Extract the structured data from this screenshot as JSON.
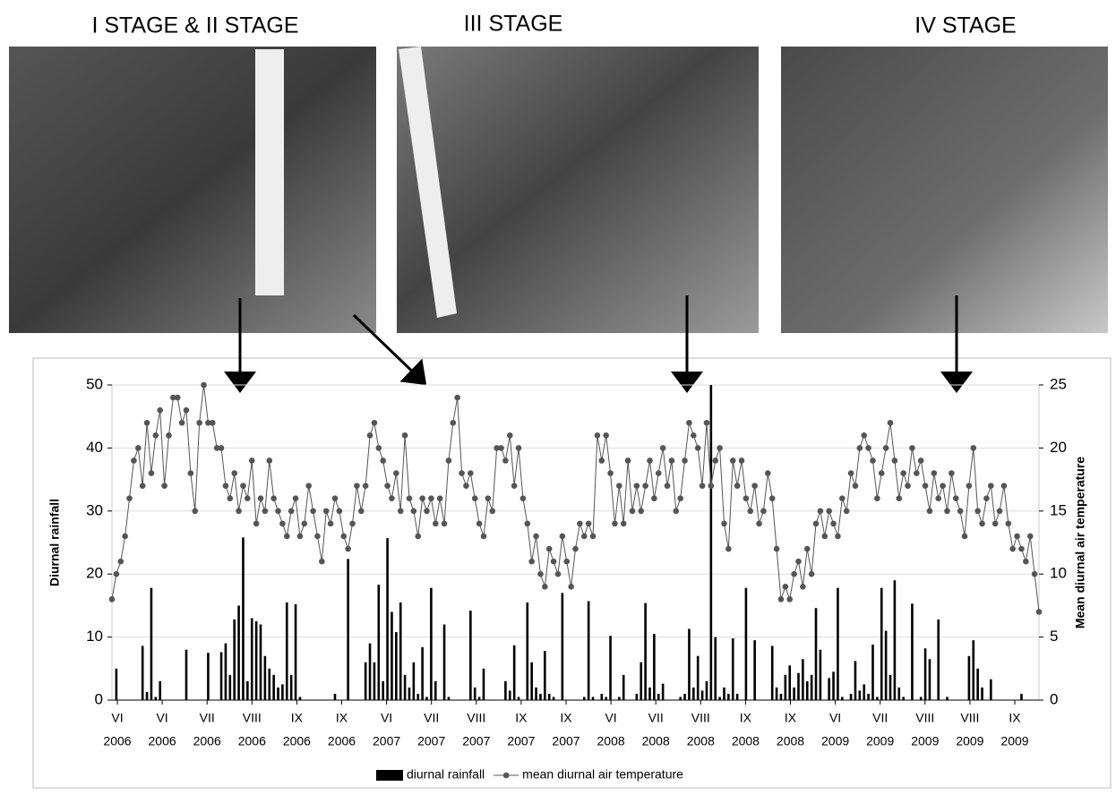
{
  "photos": [
    {
      "title": "I STAGE & II STAGE"
    },
    {
      "title": "III STAGE"
    },
    {
      "title": "IV STAGE"
    }
  ],
  "chart_data": {
    "type": "bar-line",
    "ylabel": "Diurnal rainfall",
    "y2label": "Mean diurnal air temperature",
    "ylim": [
      0,
      50
    ],
    "yticks": [
      0,
      10,
      20,
      30,
      40,
      50
    ],
    "y2lim": [
      0,
      25
    ],
    "y2ticks": [
      0,
      5,
      10,
      15,
      20,
      25
    ],
    "grid": true,
    "legend": "bottom",
    "x_labels": [
      {
        "month": "VI",
        "year": "2006"
      },
      {
        "month": "VI",
        "year": "2006"
      },
      {
        "month": "VII",
        "year": "2006"
      },
      {
        "month": "VIII",
        "year": "2006"
      },
      {
        "month": "IX",
        "year": "2006"
      },
      {
        "month": "IX",
        "year": "2006"
      },
      {
        "month": "VI",
        "year": "2007"
      },
      {
        "month": "VII",
        "year": "2007"
      },
      {
        "month": "VIII",
        "year": "2007"
      },
      {
        "month": "IX",
        "year": "2007"
      },
      {
        "month": "IX",
        "year": "2007"
      },
      {
        "month": "VI",
        "year": "2008"
      },
      {
        "month": "VII",
        "year": "2008"
      },
      {
        "month": "VIII",
        "year": "2008"
      },
      {
        "month": "IX",
        "year": "2008"
      },
      {
        "month": "IX",
        "year": "2008"
      },
      {
        "month": "VI",
        "year": "2009"
      },
      {
        "month": "VII",
        "year": "2009"
      },
      {
        "month": "VIII",
        "year": "2009"
      },
      {
        "month": "VIII",
        "year": "2009"
      },
      {
        "month": "IX",
        "year": "2009"
      }
    ],
    "series": [
      {
        "name": "diurnal rainfall",
        "type": "bar",
        "color": "#000000",
        "values": [
          0,
          5,
          0,
          0,
          0,
          0,
          0,
          8.6,
          1.3,
          17.8,
          0.5,
          3,
          0,
          0,
          0,
          0,
          0,
          8,
          0,
          0,
          0,
          0,
          7.5,
          0,
          0,
          7.6,
          9,
          4,
          12.8,
          15,
          25.8,
          3,
          13,
          12.5,
          12,
          7,
          5,
          4,
          2,
          2.5,
          15.5,
          4,
          15.2,
          0.5,
          0,
          0,
          0,
          0,
          0,
          0,
          0,
          1,
          0,
          0,
          22.4,
          0,
          0,
          0,
          6,
          9,
          6,
          18.3,
          3,
          25.7,
          14,
          10.8,
          15.5,
          4,
          2,
          6,
          1,
          8.4,
          0.5,
          17.8,
          3,
          0,
          12,
          0.5,
          0,
          0,
          0,
          0,
          14.2,
          2,
          0.5,
          5,
          0,
          0,
          0,
          0,
          3,
          1.5,
          8.7,
          0.5,
          0,
          15.5,
          6,
          2,
          1,
          7.8,
          1,
          0.5,
          0,
          17,
          0,
          0,
          0,
          0,
          0.5,
          15.7,
          0.5,
          0,
          1,
          0.5,
          10.2,
          0,
          0.5,
          4,
          0,
          0,
          1,
          6,
          15.4,
          2,
          10.5,
          1,
          2.6,
          0,
          0,
          0,
          0.5,
          1,
          11.3,
          2,
          7,
          1.5,
          3,
          50,
          10,
          0.5,
          2,
          1,
          9.8,
          1,
          0,
          17.8,
          0,
          9.5,
          0,
          0,
          0,
          8.6,
          2,
          1,
          4,
          5.5,
          2,
          4.3,
          6.5,
          3,
          4,
          14.6,
          8,
          0,
          3.5,
          4.5,
          17.8,
          0.5,
          0,
          1,
          6.2,
          1.5,
          2.5,
          1,
          8.8,
          0.5,
          17.8,
          11,
          4,
          19,
          2,
          0.5,
          0,
          15.3,
          0,
          0.5,
          8.2,
          6.5,
          0,
          12.8,
          0,
          0.5,
          0,
          0,
          0,
          0,
          7,
          9.5,
          5,
          2,
          0,
          3.3,
          0,
          0,
          0,
          0,
          0,
          0,
          1,
          0,
          0,
          0,
          0
        ]
      },
      {
        "name": "mean diurnal air temperature",
        "type": "line",
        "axis": "y2",
        "color": "#555555",
        "values": [
          8,
          10,
          11,
          13,
          16,
          19,
          20,
          17,
          22,
          18,
          21,
          23,
          17,
          21,
          24,
          24,
          22,
          23,
          18,
          15,
          22,
          25,
          22,
          22,
          20,
          20,
          17,
          16,
          18,
          15,
          17,
          16,
          19,
          14,
          16,
          15,
          19,
          16,
          15,
          14,
          13,
          15,
          16,
          13,
          14,
          17,
          15,
          13,
          11,
          15,
          14,
          16,
          15,
          13,
          12,
          14,
          17,
          15,
          17,
          21,
          22,
          20,
          19,
          17,
          16,
          18,
          15,
          21,
          16,
          15,
          13,
          16,
          15,
          16,
          14,
          16,
          14,
          19,
          22,
          24,
          18,
          17,
          18,
          16,
          14,
          13,
          16,
          15,
          20,
          20,
          19,
          21,
          17,
          20,
          16,
          14,
          11,
          13,
          10,
          9,
          12,
          11,
          10,
          13,
          11,
          9,
          12,
          14,
          13,
          14,
          13,
          21,
          19,
          21,
          18,
          14,
          17,
          14,
          19,
          15,
          17,
          15,
          17,
          19,
          16,
          18,
          20,
          17,
          19,
          15,
          16,
          19,
          22,
          21,
          20,
          17,
          22,
          17,
          19,
          20,
          14,
          12,
          19,
          17,
          19,
          16,
          15,
          17,
          14,
          15,
          18,
          16,
          12,
          8,
          9,
          8,
          10,
          11,
          9,
          12,
          10,
          14,
          15,
          13,
          15,
          14,
          13,
          16,
          15,
          18,
          17,
          20,
          21,
          20,
          19,
          16,
          18,
          20,
          22,
          19,
          16,
          18,
          17,
          20,
          18,
          19,
          17,
          15,
          18,
          16,
          17,
          15,
          18,
          16,
          15,
          13,
          17,
          20,
          15,
          14,
          16,
          17,
          14,
          15,
          17,
          14,
          12,
          13,
          12,
          11,
          13,
          10,
          7
        ]
      }
    ]
  }
}
